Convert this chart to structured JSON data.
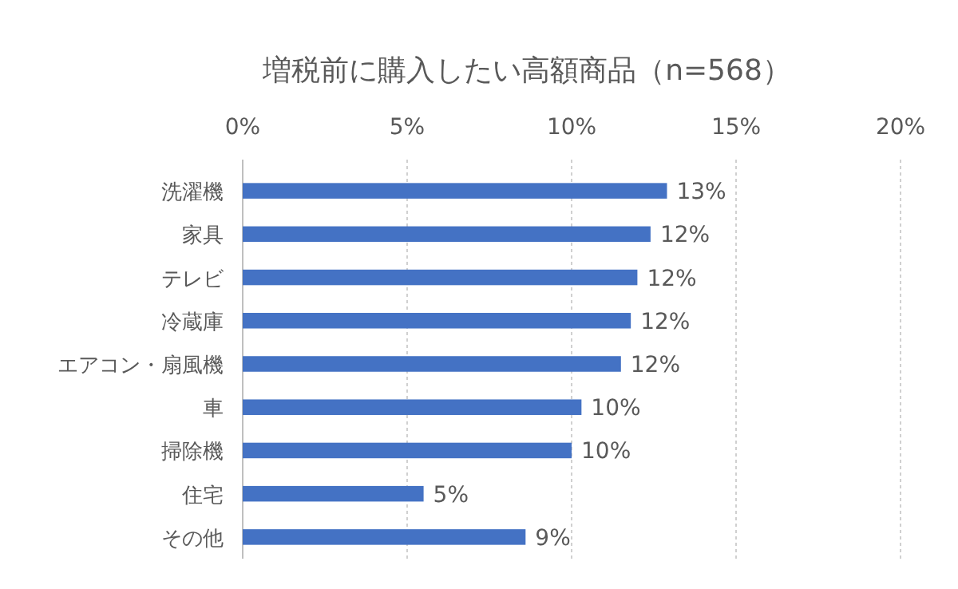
{
  "chart_data": {
    "type": "bar",
    "orientation": "horizontal",
    "title": "増税前に購入したい高額商品（n=568）",
    "categories": [
      "洗濯機",
      "家具",
      "テレビ",
      "冷蔵庫",
      "エアコン・扇風機",
      "車",
      "掃除機",
      "住宅",
      "その他"
    ],
    "values": [
      12.9,
      12.4,
      12.0,
      11.8,
      11.5,
      10.3,
      10.0,
      5.5,
      8.6
    ],
    "value_labels": [
      "13%",
      "12%",
      "12%",
      "12%",
      "12%",
      "10%",
      "10%",
      "5%",
      "9%"
    ],
    "color": "#4472c4",
    "xlim": [
      0,
      20
    ],
    "xticks": [
      {
        "value": 0,
        "label": "0%"
      },
      {
        "value": 5,
        "label": "5%"
      },
      {
        "value": 10,
        "label": "10%"
      },
      {
        "value": 15,
        "label": "15%"
      },
      {
        "value": 20,
        "label": "20%"
      }
    ],
    "grid": "x"
  }
}
